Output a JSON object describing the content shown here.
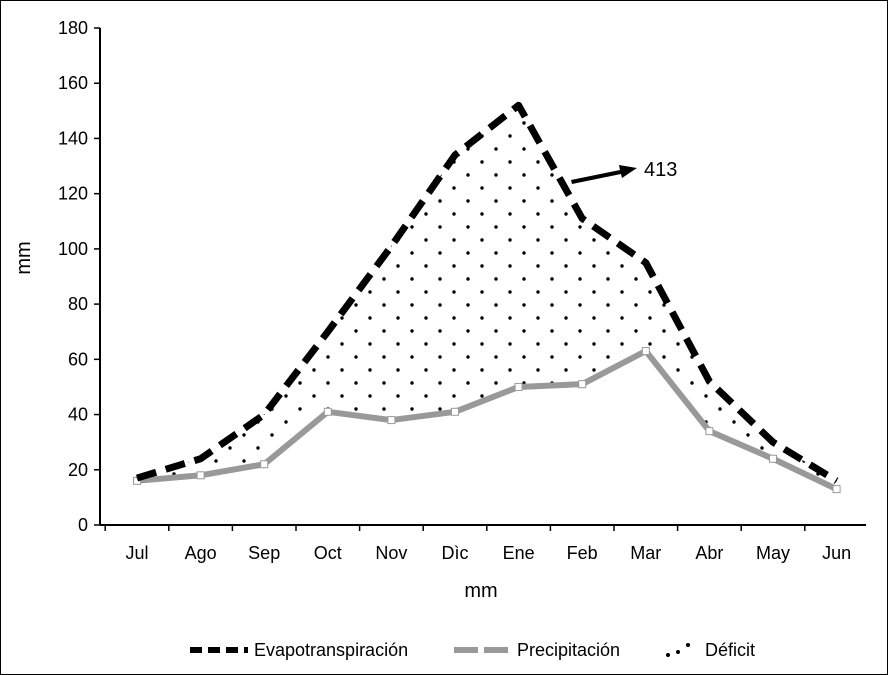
{
  "chart_data": {
    "type": "line",
    "categories": [
      "Jul",
      "Ago",
      "Sep",
      "Oct",
      "Nov",
      "Dìc",
      "Ene",
      "Feb",
      "Mar",
      "Abr",
      "May",
      "Jun"
    ],
    "series": [
      {
        "name": "Evapotranspiración",
        "values": [
          17,
          24,
          40,
          70,
          101,
          134,
          152,
          111,
          95,
          52,
          30,
          16
        ],
        "color": "#000000",
        "style": "dashed"
      },
      {
        "name": "Precipitación",
        "values": [
          16,
          18,
          22,
          41,
          38,
          41,
          50,
          51,
          63,
          34,
          24,
          13
        ],
        "color": "#999999",
        "style": "solid-with-markers"
      },
      {
        "name": "Déficit",
        "style": "dotted-area",
        "color": "#000000"
      }
    ],
    "annotation": {
      "text": "413"
    },
    "xlabel": "mm",
    "ylabel": "mm",
    "ylim": [
      0,
      180
    ],
    "yticks": [
      0,
      20,
      40,
      60,
      80,
      100,
      120,
      140,
      160,
      180
    ],
    "grid": false,
    "legend_position": "bottom"
  }
}
